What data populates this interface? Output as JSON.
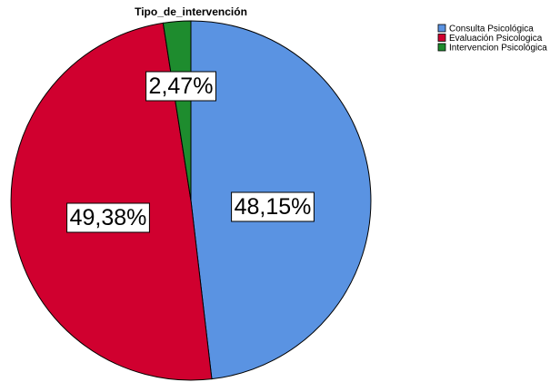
{
  "chart_data": {
    "type": "pie",
    "title": "Tipo_de_intervención",
    "slices": [
      {
        "name": "Consulta Psicológica",
        "value": 48.15,
        "label": "48,15%",
        "color": "#5a93e2"
      },
      {
        "name": "Evaluación Psicologica",
        "value": 49.38,
        "label": "49,38%",
        "color": "#d0002f"
      },
      {
        "name": "Intervencion Psicológica",
        "value": 2.47,
        "label": "2,47%",
        "color": "#1e8c2e"
      }
    ],
    "start_angle_deg": 0,
    "direction": "clockwise",
    "legend_position": "top-right"
  }
}
